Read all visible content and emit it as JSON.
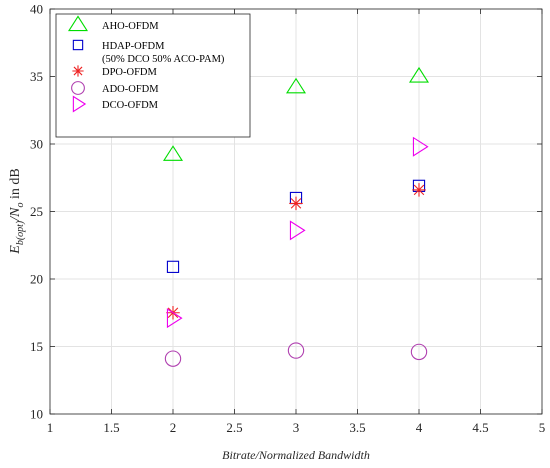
{
  "chart_data": {
    "type": "scatter",
    "xlabel": "Bitrate/Normalized Bandwidth",
    "ylabel": {
      "E": "E",
      "sub1": "b(opt)",
      "slash": "/N",
      "sub2": "o",
      "suffix": " in dB"
    },
    "xlim": [
      1,
      5
    ],
    "ylim": [
      10,
      40
    ],
    "xticks": [
      "1",
      "1.5",
      "2",
      "2.5",
      "3",
      "3.5",
      "4",
      "4.5",
      "5"
    ],
    "yticks": [
      "10",
      "15",
      "20",
      "25",
      "30",
      "35",
      "40"
    ],
    "grid": true,
    "legend_position": "top-left",
    "series": [
      {
        "name": "AHO-OFDM",
        "name_line2": "",
        "marker": "triangle-up",
        "color": "#00dd00",
        "x": [
          2,
          3,
          4
        ],
        "y": [
          29.2,
          34.2,
          35.0
        ]
      },
      {
        "name": "HDAP-OFDM",
        "name_line2": "(50% DCO 50% ACO-PAM)",
        "marker": "square",
        "color": "#0000cc",
        "x": [
          2,
          3,
          4
        ],
        "y": [
          20.9,
          26.0,
          26.9
        ]
      },
      {
        "name": "DPO-OFDM",
        "name_line2": "",
        "marker": "asterisk",
        "color": "#ee2222",
        "x": [
          2,
          3,
          4
        ],
        "y": [
          17.5,
          25.6,
          26.6
        ]
      },
      {
        "name": "ADO-OFDM",
        "name_line2": "",
        "marker": "circle",
        "color": "#b040b0",
        "x": [
          2,
          3,
          4
        ],
        "y": [
          14.1,
          14.7,
          14.6
        ]
      },
      {
        "name": "DCO-OFDM",
        "name_line2": "",
        "marker": "triangle-right",
        "color": "#ee00ee",
        "x": [
          2,
          3,
          4
        ],
        "y": [
          17.1,
          23.6,
          29.8
        ]
      }
    ]
  }
}
